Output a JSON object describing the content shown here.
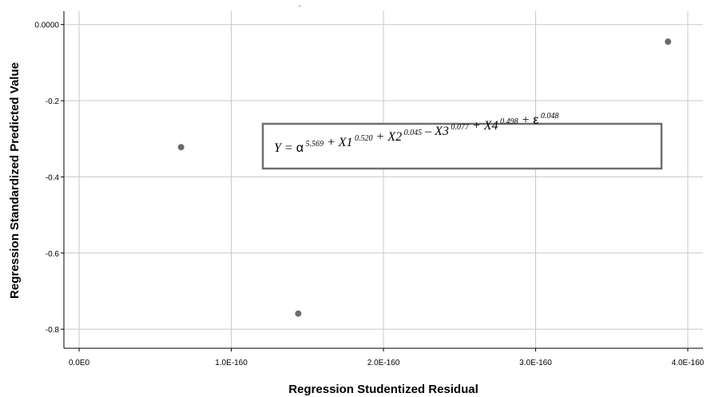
{
  "chart_data": {
    "type": "scatter",
    "title": ".",
    "xlabel": "Regression Studentized Residual",
    "ylabel": "Regression Standardized Predicted Value",
    "xlim": [
      -1e-161,
      4.1e-160
    ],
    "ylim": [
      -0.85,
      0.035
    ],
    "x_ticks": [
      0,
      1e-160,
      2e-160,
      3e-160,
      4e-160
    ],
    "x_tick_labels": [
      "0.0E0",
      "1.0E-160",
      "2.0E-160",
      "3.0E-160",
      "4.0E-160"
    ],
    "y_ticks": [
      0,
      -0.2,
      -0.4,
      -0.6,
      -0.8
    ],
    "y_tick_labels": [
      "0.0000",
      "-0.2",
      "-0.4",
      "-0.6",
      "-0.8"
    ],
    "grid": true,
    "marker_color": "#6b6b6b",
    "grid_color": "#c8c8c8",
    "points": [
      {
        "x": 6.7e-161,
        "y": -0.322
      },
      {
        "x": 1.44e-160,
        "y": -0.759
      },
      {
        "x": 3.87e-160,
        "y": -0.045
      }
    ],
    "annotation": {
      "parts": [
        {
          "t": "Y",
          "style": "i"
        },
        {
          "t": " = ",
          "style": "r"
        },
        {
          "t": "α",
          "style": "g"
        },
        {
          "t": " 5.569",
          "style": "sup"
        },
        {
          "t": " + ",
          "style": "r"
        },
        {
          "t": "X1",
          "style": "i"
        },
        {
          "t": " 0.520",
          "style": "sup"
        },
        {
          "t": " + ",
          "style": "r"
        },
        {
          "t": "X2",
          "style": "i"
        },
        {
          "t": " 0.045",
          "style": "sup"
        },
        {
          "t": " – ",
          "style": "r"
        },
        {
          "t": "X3",
          "style": "i"
        },
        {
          "t": " 0.077",
          "style": "sup"
        },
        {
          "t": " + ",
          "style": "r"
        },
        {
          "t": "X4",
          "style": "i"
        },
        {
          "t": " 0.498",
          "style": "sup"
        },
        {
          "t": " + ",
          "style": "r"
        },
        {
          "t": "ε",
          "style": "g"
        },
        {
          "t": " 0.048",
          "style": "sup"
        }
      ]
    }
  }
}
